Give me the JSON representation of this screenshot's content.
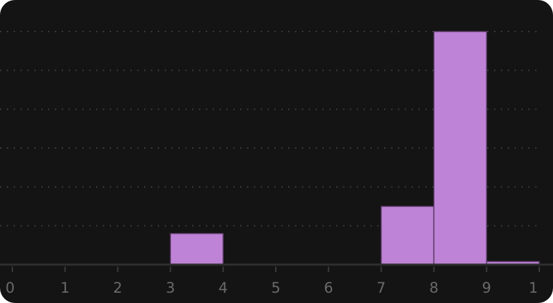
{
  "chart_data": {
    "type": "bar",
    "title": "",
    "xlabel": "",
    "ylabel": "",
    "x_ticks": [
      "0",
      "1",
      "2",
      "3",
      "4",
      "5",
      "6",
      "7",
      "8",
      "9",
      "1"
    ],
    "bins": [
      {
        "start": 0,
        "end": 1,
        "value": 0
      },
      {
        "start": 1,
        "end": 2,
        "value": 0
      },
      {
        "start": 2,
        "end": 3,
        "value": 0
      },
      {
        "start": 3,
        "end": 4,
        "value": 0.8
      },
      {
        "start": 4,
        "end": 5,
        "value": 0
      },
      {
        "start": 5,
        "end": 6,
        "value": 0
      },
      {
        "start": 6,
        "end": 7,
        "value": 0
      },
      {
        "start": 7,
        "end": 8,
        "value": 1.5
      },
      {
        "start": 8,
        "end": 9,
        "value": 6.0
      },
      {
        "start": 9,
        "end": 10,
        "value": 0.08
      }
    ],
    "ylim": [
      0,
      6.0
    ],
    "y_gridlines": 6,
    "grid": true,
    "legend": "none",
    "colors": {
      "background": "#141414",
      "bar": "#be83d6",
      "bar_edge": "#5a3a66",
      "grid": "#3a3a3a",
      "axis": "#2f2f2f",
      "tick_text": "#6a6a6a"
    }
  }
}
